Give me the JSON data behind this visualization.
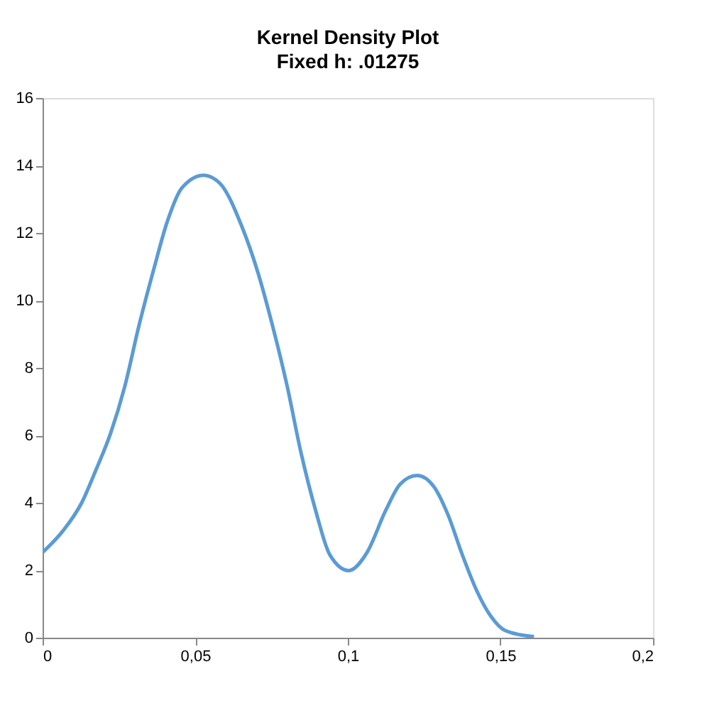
{
  "chart_data": {
    "type": "line",
    "title": "Kernel Density Plot",
    "subtitle": "Fixed h: .01275",
    "x": [
      0,
      0.0066,
      0.0128,
      0.0175,
      0.0222,
      0.0269,
      0.0316,
      0.0363,
      0.0409,
      0.0456,
      0.0527,
      0.0581,
      0.0652,
      0.0706,
      0.0753,
      0.08,
      0.0847,
      0.0894,
      0.0941,
      0.1003,
      0.1063,
      0.1125,
      0.1172,
      0.1227,
      0.1281,
      0.1328,
      0.1375,
      0.1422,
      0.1469,
      0.1516,
      0.161
    ],
    "series": [
      {
        "color": "#5b9bd5",
        "values": [
          2.53,
          3.16,
          4.0,
          4.98,
          6.04,
          7.44,
          9.26,
          10.88,
          12.35,
          13.33,
          13.71,
          13.47,
          12.21,
          10.81,
          9.26,
          7.51,
          5.47,
          3.79,
          2.46,
          1.99,
          2.53,
          3.79,
          4.56,
          4.81,
          4.49,
          3.65,
          2.46,
          1.4,
          0.63,
          0.21,
          0.03
        ]
      }
    ],
    "xlim": [
      0,
      0.2
    ],
    "xticks": [
      0,
      {
        "value": 0.05,
        "label": "0,05"
      },
      {
        "value": 0.1,
        "label": "0,1"
      },
      {
        "value": 0.15,
        "label": "0,15"
      },
      {
        "value": 0.2,
        "label": "0,2"
      }
    ],
    "ylim": [
      0,
      16
    ],
    "yticks": [
      0,
      2,
      4,
      6,
      8,
      10,
      12,
      14,
      16
    ],
    "grid": false,
    "marker": "none",
    "line_style": "solid"
  }
}
